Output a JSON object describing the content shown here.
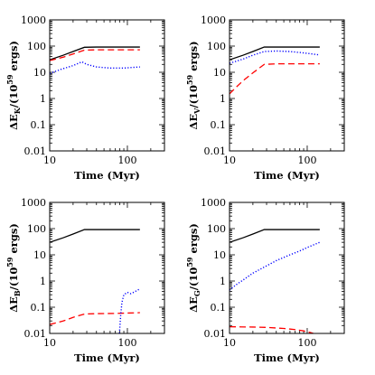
{
  "chart_data": [
    {
      "type": "line",
      "panel": "top-left",
      "xscale": "log",
      "yscale": "log",
      "xlim": [
        10,
        300
      ],
      "ylim": [
        0.01,
        1000
      ],
      "xlabel": "Time (Myr)",
      "ylabel": {
        "main": "ΔE",
        "sub": "K",
        "mid": "/(10",
        "sup": "59",
        "tail": " ergs)"
      },
      "xticks": [
        10,
        100
      ],
      "xtick_labels": [
        "10",
        "100"
      ],
      "yticks": [
        0.01,
        0.1,
        1,
        10,
        100,
        1000
      ],
      "ytick_labels": [
        "0.01",
        "0.1",
        "1",
        "10",
        "100",
        "1000"
      ],
      "series": [
        {
          "color": "#000000",
          "style": "solid",
          "points": [
            [
              10,
              30
            ],
            [
              15,
              45
            ],
            [
              20,
              62
            ],
            [
              28,
              90
            ],
            [
              40,
              92
            ],
            [
              70,
              92
            ],
            [
              145,
              92
            ]
          ]
        },
        {
          "color": "#ff0000",
          "style": "dashed",
          "points": [
            [
              10,
              28
            ],
            [
              15,
              38
            ],
            [
              20,
              50
            ],
            [
              28,
              70
            ],
            [
              40,
              72
            ],
            [
              70,
              72
            ],
            [
              145,
              72
            ]
          ]
        },
        {
          "color": "#0000ff",
          "style": "dotted",
          "points": [
            [
              10,
              9
            ],
            [
              14,
              13
            ],
            [
              20,
              18
            ],
            [
              26,
              25
            ],
            [
              30,
              20
            ],
            [
              40,
              16
            ],
            [
              60,
              14.5
            ],
            [
              90,
              14.5
            ],
            [
              145,
              16
            ]
          ]
        }
      ]
    },
    {
      "type": "line",
      "panel": "top-right",
      "xscale": "log",
      "yscale": "log",
      "xlim": [
        10,
        300
      ],
      "ylim": [
        0.01,
        1000
      ],
      "xlabel": "Time (Myr)",
      "ylabel": {
        "main": "ΔE",
        "sub": "V",
        "mid": "/(10",
        "sup": "59",
        "tail": " ergs)"
      },
      "xticks": [
        10,
        100
      ],
      "xtick_labels": [
        "10",
        "100"
      ],
      "yticks": [
        0.01,
        0.1,
        1,
        10,
        100,
        1000
      ],
      "ytick_labels": [
        "0.01",
        "0.1",
        "1",
        "10",
        "100",
        "1000"
      ],
      "series": [
        {
          "color": "#000000",
          "style": "solid",
          "points": [
            [
              10,
              30
            ],
            [
              15,
              45
            ],
            [
              20,
              62
            ],
            [
              28,
              92
            ],
            [
              40,
              92
            ],
            [
              70,
              92
            ],
            [
              145,
              92
            ]
          ]
        },
        {
          "color": "#ff0000",
          "style": "dashed",
          "points": [
            [
              10,
              1.5
            ],
            [
              12,
              2.6
            ],
            [
              15,
              4.8
            ],
            [
              20,
              9.5
            ],
            [
              28,
              20
            ],
            [
              40,
              21
            ],
            [
              70,
              21
            ],
            [
              145,
              21
            ]
          ]
        },
        {
          "color": "#0000ff",
          "style": "dotted",
          "points": [
            [
              10,
              22
            ],
            [
              15,
              32
            ],
            [
              20,
              45
            ],
            [
              28,
              62
            ],
            [
              40,
              65
            ],
            [
              60,
              62
            ],
            [
              90,
              55
            ],
            [
              145,
              46
            ]
          ]
        }
      ]
    },
    {
      "type": "line",
      "panel": "bottom-left",
      "xscale": "log",
      "yscale": "log",
      "xlim": [
        10,
        300
      ],
      "ylim": [
        0.01,
        1000
      ],
      "xlabel": "Time (Myr)",
      "ylabel": {
        "main": "ΔE",
        "sub": "B",
        "mid": "/(10",
        "sup": "59",
        "tail": " ergs)"
      },
      "xticks": [
        10,
        100
      ],
      "xtick_labels": [
        "10",
        "100"
      ],
      "yticks": [
        0.01,
        0.1,
        1,
        10,
        100,
        1000
      ],
      "ytick_labels": [
        "0.01",
        "0.1",
        "1",
        "10",
        "100",
        "1000"
      ],
      "series": [
        {
          "color": "#000000",
          "style": "solid",
          "points": [
            [
              10,
              30
            ],
            [
              15,
              45
            ],
            [
              20,
              62
            ],
            [
              28,
              92
            ],
            [
              40,
              92
            ],
            [
              70,
              92
            ],
            [
              145,
              92
            ]
          ]
        },
        {
          "color": "#ff0000",
          "style": "dashed",
          "points": [
            [
              10,
              0.022
            ],
            [
              15,
              0.03
            ],
            [
              20,
              0.041
            ],
            [
              28,
              0.055
            ],
            [
              40,
              0.057
            ],
            [
              70,
              0.058
            ],
            [
              145,
              0.062
            ]
          ]
        },
        {
          "color": "#0000ff",
          "style": "dotted",
          "points": [
            [
              79,
              0.01
            ],
            [
              82,
              0.05
            ],
            [
              85,
              0.15
            ],
            [
              90,
              0.3
            ],
            [
              100,
              0.37
            ],
            [
              110,
              0.33
            ],
            [
              118,
              0.36
            ],
            [
              130,
              0.42
            ],
            [
              145,
              0.5
            ]
          ]
        }
      ]
    },
    {
      "type": "line",
      "panel": "bottom-right",
      "xscale": "log",
      "yscale": "log",
      "xlim": [
        10,
        300
      ],
      "ylim": [
        0.01,
        1000
      ],
      "xlabel": "Time (Myr)",
      "ylabel": {
        "main": "ΔE",
        "sub": "G",
        "mid": "/(10",
        "sup": "59",
        "tail": " ergs)"
      },
      "xticks": [
        10,
        100
      ],
      "xtick_labels": [
        "10",
        "100"
      ],
      "yticks": [
        0.01,
        0.1,
        1,
        10,
        100,
        1000
      ],
      "ytick_labels": [
        "0.01",
        "0.1",
        "1",
        "10",
        "100",
        "1000"
      ],
      "series": [
        {
          "color": "#000000",
          "style": "solid",
          "points": [
            [
              10,
              30
            ],
            [
              15,
              45
            ],
            [
              20,
              62
            ],
            [
              28,
              92
            ],
            [
              40,
              92
            ],
            [
              70,
              92
            ],
            [
              145,
              92
            ]
          ]
        },
        {
          "color": "#ff0000",
          "style": "dashed",
          "points": [
            [
              10,
              0.018
            ],
            [
              20,
              0.0175
            ],
            [
              30,
              0.017
            ],
            [
              50,
              0.0155
            ],
            [
              70,
              0.014
            ],
            [
              90,
              0.0125
            ],
            [
              110,
              0.0108
            ],
            [
              120,
              0.01
            ]
          ]
        },
        {
          "color": "#0000ff",
          "style": "dotted",
          "points": [
            [
              10,
              0.45
            ],
            [
              12,
              0.7
            ],
            [
              15,
              1.1
            ],
            [
              20,
              2.0
            ],
            [
              30,
              3.8
            ],
            [
              40,
              6
            ],
            [
              60,
              10
            ],
            [
              80,
              14
            ],
            [
              100,
              19
            ],
            [
              145,
              30
            ]
          ]
        }
      ]
    }
  ]
}
